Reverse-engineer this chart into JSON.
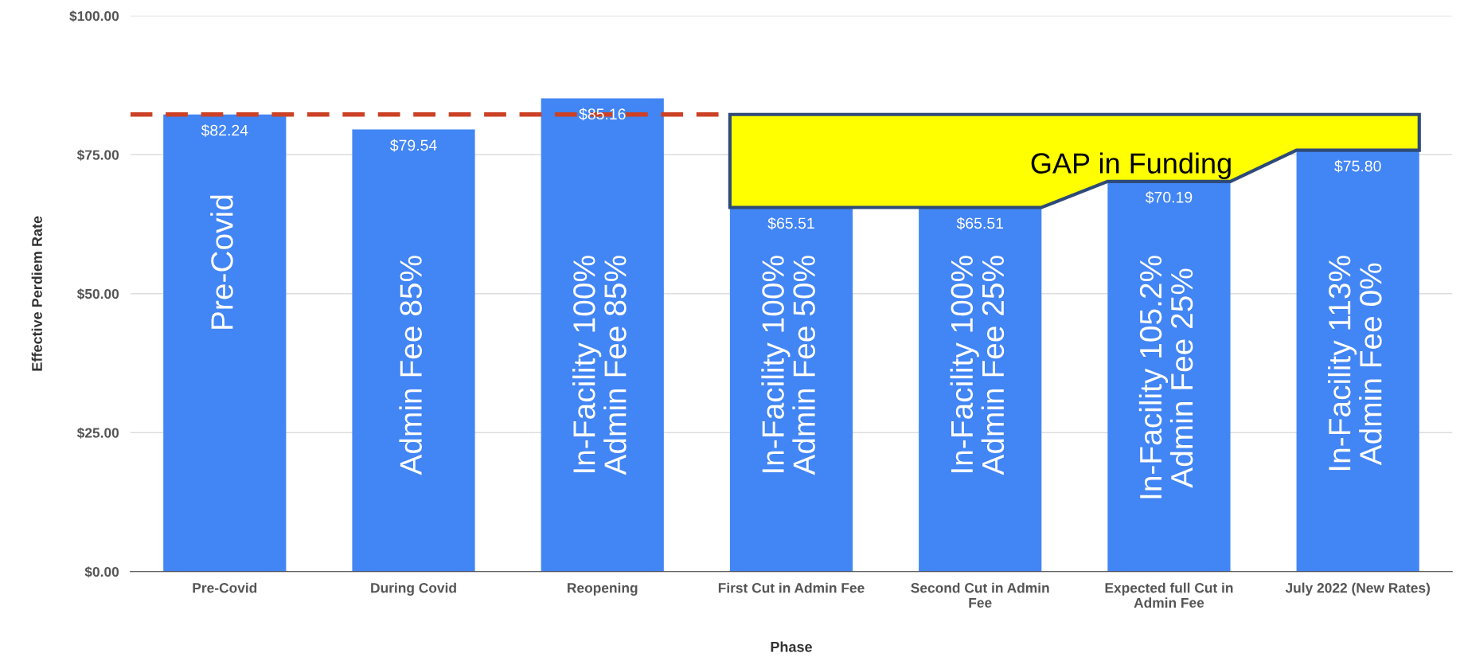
{
  "chart_data": {
    "type": "bar",
    "xlabel": "Phase",
    "ylabel": "Effective Perdiem Rate",
    "categories": [
      "Pre-Covid",
      "During Covid",
      "Reopening",
      "First Cut in Admin Fee",
      "Second Cut in Admin Fee",
      "Expected full Cut in Admin Fee",
      "July 2022 (New Rates)"
    ],
    "values": [
      82.24,
      79.54,
      85.16,
      65.51,
      65.51,
      70.19,
      75.8
    ],
    "value_labels": [
      "$82.24",
      "$79.54",
      "$85.16",
      "$65.51",
      "$65.51",
      "$70.19",
      "$75.80"
    ],
    "color": "#4285f4",
    "ylim": [
      0,
      100
    ],
    "yticks": [
      {
        "value": 0,
        "label": "$0.00"
      },
      {
        "value": 25,
        "label": "$25.00"
      },
      {
        "value": 50,
        "label": "$50.00"
      },
      {
        "value": 75,
        "label": "$75.00"
      },
      {
        "value": 100,
        "label": "$100.00"
      }
    ],
    "grid": "y",
    "ref_lines": [
      {
        "axis": "y",
        "value": 82.24,
        "label": null,
        "color": "#cc4125",
        "line_style": "dashed"
      }
    ],
    "annotations": [
      "Pre-Covid",
      "Admin Fee 85%",
      "In-Facility 100%\nAdmin Fee 85%",
      "In-Facility 100%\nAdmin Fee 50%",
      "In-Facility 100%\nAdmin Fee 25%",
      "In-Facility 105.2%\nAdmin Fee 25%",
      "In-Facility 113%\nAdmin Fee 0%",
      "GAP in Funding"
    ]
  }
}
